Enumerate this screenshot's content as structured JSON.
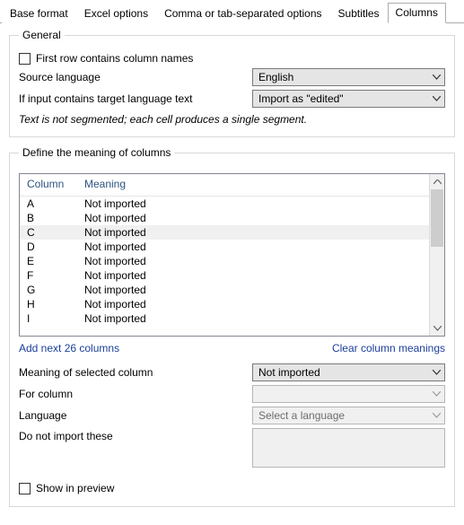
{
  "tabs": {
    "items": [
      {
        "label": "Base format",
        "active": false
      },
      {
        "label": "Excel options",
        "active": false
      },
      {
        "label": "Comma or tab-separated options",
        "active": false
      },
      {
        "label": "Subtitles",
        "active": false
      },
      {
        "label": "Columns",
        "active": true
      }
    ]
  },
  "general": {
    "legend": "General",
    "first_row_label": "First row contains column names",
    "first_row_checked": false,
    "source_language_label": "Source language",
    "source_language_value": "English",
    "target_lang_text_label": "If input contains target language text",
    "target_lang_text_value": "Import as \"edited\"",
    "note": "Text is not segmented; each cell produces a single segment."
  },
  "columns": {
    "legend": "Define the meaning of columns",
    "headers": {
      "col1": "Column",
      "col2": "Meaning"
    },
    "rows": [
      {
        "c": "A",
        "m": "Not imported",
        "sel": false
      },
      {
        "c": "B",
        "m": "Not imported",
        "sel": false
      },
      {
        "c": "C",
        "m": "Not imported",
        "sel": true
      },
      {
        "c": "D",
        "m": "Not imported",
        "sel": false
      },
      {
        "c": "E",
        "m": "Not imported",
        "sel": false
      },
      {
        "c": "F",
        "m": "Not imported",
        "sel": false
      },
      {
        "c": "G",
        "m": "Not imported",
        "sel": false
      },
      {
        "c": "H",
        "m": "Not imported",
        "sel": false
      },
      {
        "c": "I",
        "m": "Not imported",
        "sel": false
      }
    ],
    "add_link": "Add next 26 columns",
    "clear_link": "Clear column meanings",
    "meaning_label": "Meaning of selected column",
    "meaning_value": "Not imported",
    "for_column_label": "For column",
    "for_column_value": "",
    "language_label": "Language",
    "language_value": "Select a language",
    "dni_label": "Do not import these",
    "dni_value": "",
    "show_in_preview_label": "Show in preview",
    "show_in_preview_checked": false
  },
  "colors": {
    "link": "#1a3e9b",
    "header": "#30537f",
    "border": "#acacac",
    "field_bg": "#e5e5e5",
    "disabled_bg": "#f0f0f0"
  }
}
